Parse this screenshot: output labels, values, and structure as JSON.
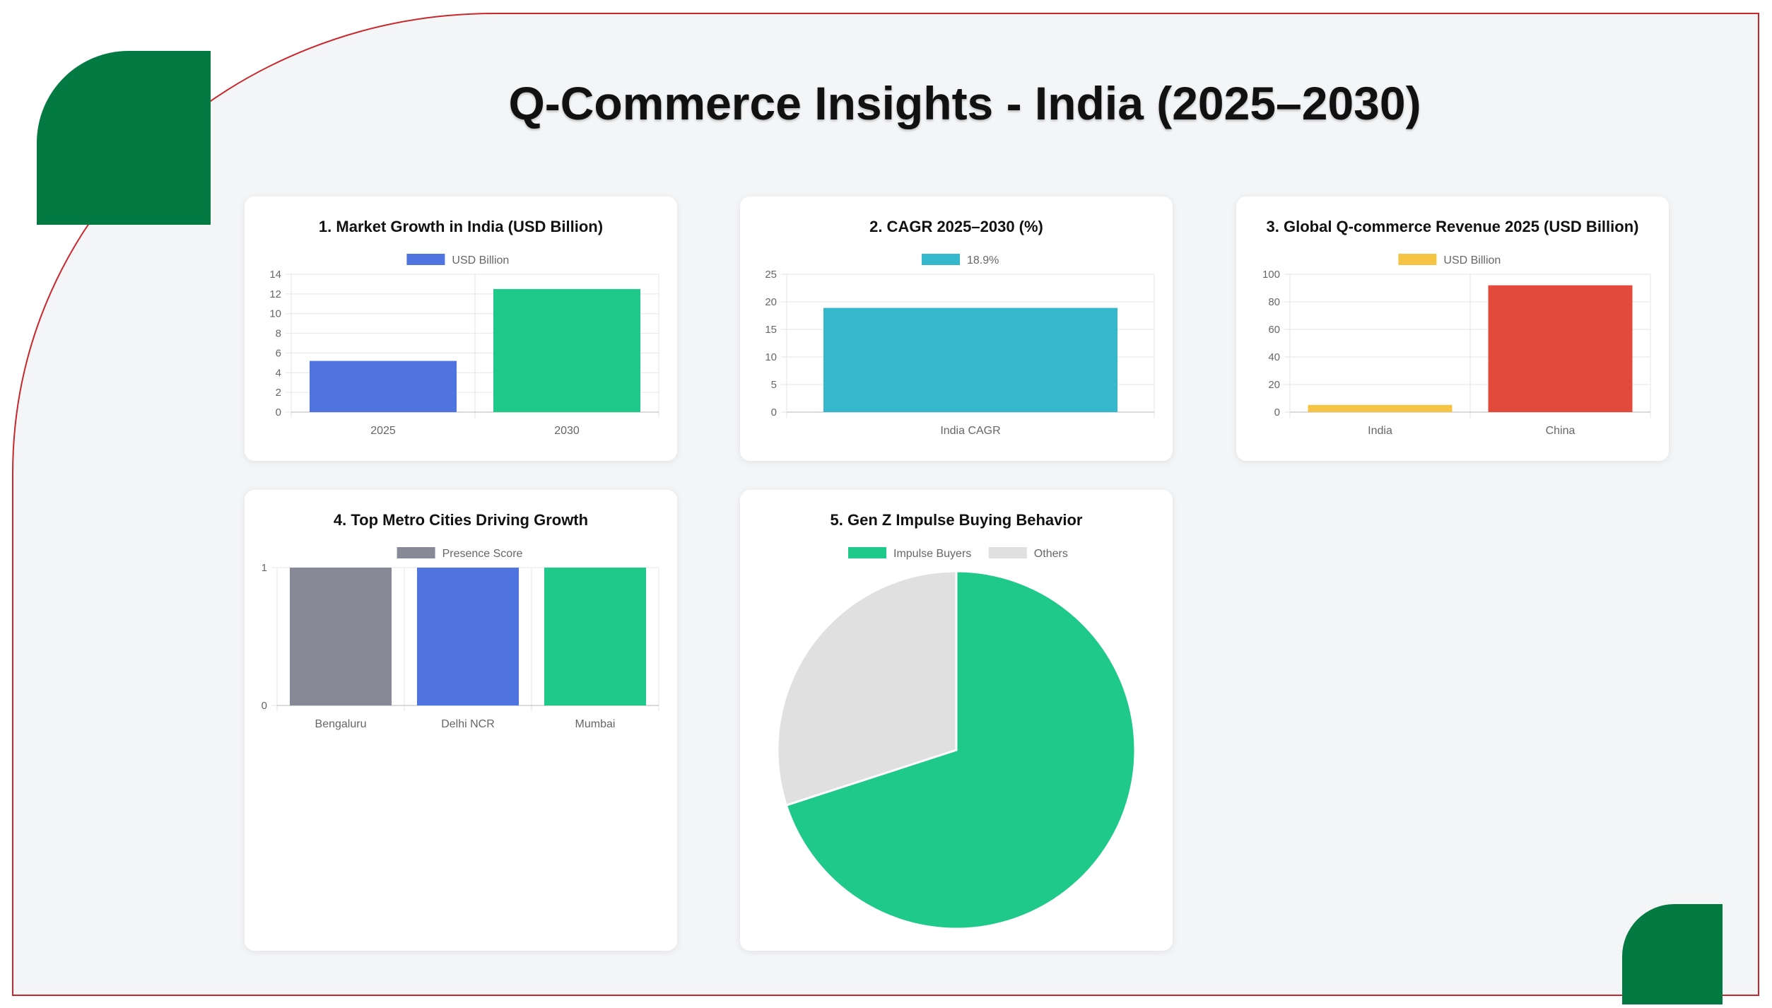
{
  "page_title": "Q-Commerce Insights - India (2025–2030)",
  "colors": {
    "brand_green": "#047a43",
    "frame_red": "#c8282d",
    "panel_bg": "#f4f5f7"
  },
  "chart_data": [
    {
      "type": "bar",
      "title": "1. Market Growth in India (USD Billion)",
      "categories": [
        "2025",
        "2030"
      ],
      "series": [
        {
          "name": "USD Billion",
          "values": [
            5.2,
            12.5
          ]
        }
      ],
      "colors": [
        "#4f74e0",
        "#1fc98a"
      ],
      "legend_color": "#4f74e0",
      "ylim": [
        0,
        14
      ],
      "yticks": [
        0,
        2,
        4,
        6,
        8,
        10,
        12,
        14
      ],
      "grid": true,
      "legend_position": "top"
    },
    {
      "type": "bar",
      "title": "2. CAGR 2025–2030 (%)",
      "categories": [
        "India CAGR"
      ],
      "series": [
        {
          "name": "18.9%",
          "values": [
            18.9
          ]
        }
      ],
      "colors": [
        "#36b8cc"
      ],
      "legend_color": "#36b8cc",
      "ylim": [
        0,
        25
      ],
      "yticks": [
        0,
        5,
        10,
        15,
        20,
        25
      ],
      "grid": true,
      "legend_position": "top"
    },
    {
      "type": "bar",
      "title": "3. Global Q-commerce Revenue 2025 (USD Billion)",
      "categories": [
        "India",
        "China"
      ],
      "series": [
        {
          "name": "USD Billion",
          "values": [
            5.2,
            92
          ]
        }
      ],
      "colors": [
        "#f5c444",
        "#e24a3b"
      ],
      "legend_color": "#f5c444",
      "ylim": [
        0,
        100
      ],
      "yticks": [
        0,
        20,
        40,
        60,
        80,
        100
      ],
      "grid": true,
      "legend_position": "top"
    },
    {
      "type": "bar",
      "title": "4. Top Metro Cities Driving Growth",
      "categories": [
        "Bengaluru",
        "Delhi NCR",
        "Mumbai"
      ],
      "series": [
        {
          "name": "Presence Score",
          "values": [
            1,
            1,
            1
          ]
        }
      ],
      "colors": [
        "#878a96",
        "#4f74e0",
        "#1fc98a"
      ],
      "legend_color": "#878a96",
      "ylim": [
        0,
        1
      ],
      "yticks": [
        0,
        1
      ],
      "grid": true,
      "legend_position": "top"
    },
    {
      "type": "pie",
      "title": "5. Gen Z Impulse Buying Behavior",
      "labels": [
        "Impulse Buyers",
        "Others"
      ],
      "values": [
        70,
        30
      ],
      "colors": [
        "#1fc98a",
        "#e0e0e0"
      ],
      "legend_position": "top"
    }
  ]
}
